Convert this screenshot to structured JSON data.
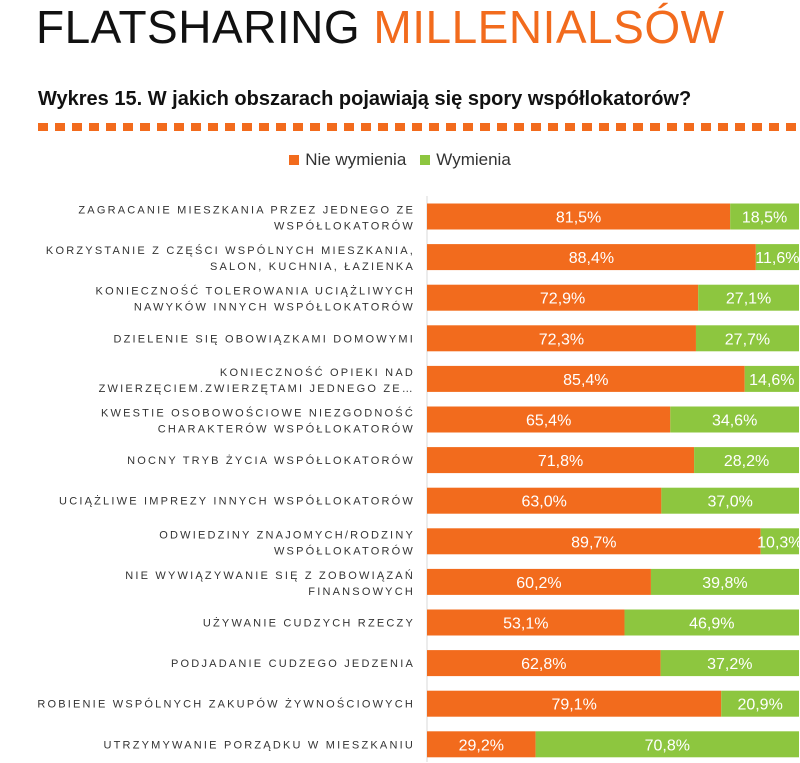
{
  "header": {
    "title_dark": "FLATSHARING",
    "title_accent": "MILLENIALSÓW",
    "subtitle": "Wykres 15. W jakich obszarach pojawiają się spory współlokatorów?"
  },
  "colors": {
    "accent": "#f26b1d",
    "green": "#8dc63f"
  },
  "chart_data": {
    "type": "bar",
    "orientation": "horizontal",
    "stacked": "100%",
    "legend_position": "top",
    "xlim": [
      0,
      100
    ],
    "categories": [
      [
        "ZAGRACANIE MIESZKANIA PRZEZ JEDNEGO ZE",
        "WSPÓŁLOKATORÓW"
      ],
      [
        "KORZYSTANIE Z CZĘŚCI WSPÓLNYCH MIESZKANIA,",
        "SALON, KUCHNIA, ŁAZIENKA"
      ],
      [
        "KONIECZNOŚĆ TOLEROWANIA UCIĄŻLIWYCH",
        "NAWYKÓW INNYCH WSPÓŁLOKATORÓW"
      ],
      [
        "DZIELENIE SIĘ OBOWIĄZKAMI DOMOWYMI"
      ],
      [
        "KONIECZNOŚĆ OPIEKI NAD",
        "ZWIERZĘCIEM.ZWIERZĘTAMI JEDNEGO ZE…"
      ],
      [
        "KWESTIE OSOBOWOŚCIOWE NIEZGODNOŚĆ",
        "CHARAKTERÓW WSPÓŁLOKATORÓW"
      ],
      [
        "NOCNY TRYB ŻYCIA WSPÓŁLOKATORÓW"
      ],
      [
        "UCIĄŻLIWE IMPREZY INNYCH WSPÓŁLOKATORÓW"
      ],
      [
        "ODWIEDZINY ZNAJOMYCH/RODZINY",
        "WSPÓŁLOKATORÓW"
      ],
      [
        "NIE WYWIĄZYWANIE SIĘ Z ZOBOWIĄZAŃ",
        "FINANSOWYCH"
      ],
      [
        "UŻYWANIE CUDZYCH RZECZY"
      ],
      [
        "PODJADANIE CUDZEGO JEDZENIA"
      ],
      [
        "ROBIENIE WSPÓLNYCH ZAKUPÓW ŻYWNOŚCIOWYCH"
      ],
      [
        "UTRZYMYWANIE PORZĄDKU W MIESZKANIU"
      ]
    ],
    "series": [
      {
        "name": "Nie wymienia",
        "color": "#f26b1d",
        "values": [
          81.5,
          88.4,
          72.9,
          72.3,
          85.4,
          65.4,
          71.8,
          63.0,
          89.7,
          60.2,
          53.1,
          62.8,
          79.1,
          29.2
        ],
        "labels": [
          "81,5%",
          "88,4%",
          "72,9%",
          "72,3%",
          "85,4%",
          "65,4%",
          "71,8%",
          "63,0%",
          "89,7%",
          "60,2%",
          "53,1%",
          "62,8%",
          "79,1%",
          "29,2%"
        ]
      },
      {
        "name": "Wymienia",
        "color": "#8dc63f",
        "values": [
          18.5,
          11.6,
          27.1,
          27.7,
          14.6,
          34.6,
          28.2,
          37.0,
          10.3,
          39.8,
          46.9,
          37.2,
          20.9,
          70.8
        ],
        "labels": [
          "18,5%",
          "11,6%",
          "27,1%",
          "27,7%",
          "14,6%",
          "34,6%",
          "28,2%",
          "37,0%",
          "10,3%",
          "39,8%",
          "46,9%",
          "37,2%",
          "20,9%",
          "70,8%"
        ]
      }
    ]
  }
}
